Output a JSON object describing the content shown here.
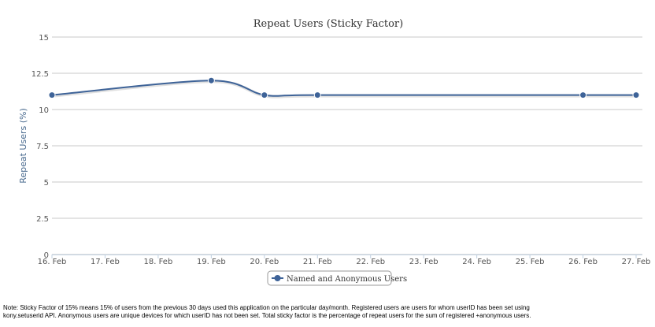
{
  "chart_data": {
    "type": "line",
    "title": "Repeat Users (Sticky Factor)",
    "ylabel": "Repeat Users (%)",
    "xlabel": "",
    "ylim": [
      0,
      15
    ],
    "yticks": [
      "0",
      "2.5",
      "5",
      "7.5",
      "10",
      "12.5",
      "15"
    ],
    "ytick_values": [
      0,
      2.5,
      5,
      7.5,
      10,
      12.5,
      15
    ],
    "categories": [
      "16. Feb",
      "17. Feb",
      "18. Feb",
      "19. Feb",
      "20. Feb",
      "21. Feb",
      "22. Feb",
      "23. Feb",
      "24. Feb",
      "25. Feb",
      "26. Feb",
      "27. Feb"
    ],
    "grid": true,
    "legend_position": "bottom-center",
    "series": [
      {
        "name": "Named and Anonymous Users",
        "color": "#3e6398",
        "points": [
          {
            "x": "16. Feb",
            "y": 11
          },
          {
            "x": "19. Feb",
            "y": 12
          },
          {
            "x": "20. Feb",
            "y": 11
          },
          {
            "x": "21. Feb",
            "y": 11
          },
          {
            "x": "26. Feb",
            "y": 11
          },
          {
            "x": "27. Feb",
            "y": 11
          }
        ]
      }
    ]
  },
  "note": "Note: Sticky Factor of 15% means 15% of users from the previous 30 days used this application on the particular day/month. Registered users are users for whom userID has been set using kony.setuserid API. Anonymous users are unique devices for which userID has not been set. Total sticky factor is the percentage of repeat users for the sum of registered +anonymous users."
}
